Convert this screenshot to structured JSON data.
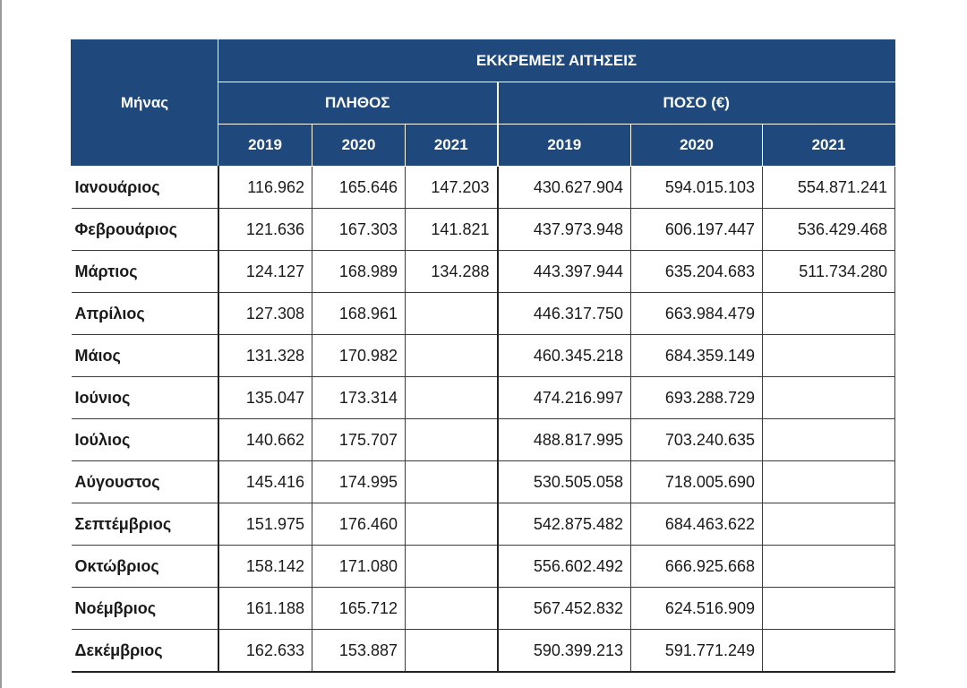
{
  "table": {
    "title": "ΕΚΚΡΕΜΕΙΣ ΑΙΤΗΣΕΙΣ",
    "month_header": "Μήνας",
    "count_header": "ΠΛΗΘΟΣ",
    "amount_header": "ΠΟΣΟ (€)",
    "years": [
      "2019",
      "2020",
      "2021"
    ],
    "rows": [
      {
        "month": "Ιανουάριος",
        "count": [
          "116.962",
          "165.646",
          "147.203"
        ],
        "amount": [
          "430.627.904",
          "594.015.103",
          "554.871.241"
        ]
      },
      {
        "month": "Φεβρουάριος",
        "count": [
          "121.636",
          "167.303",
          "141.821"
        ],
        "amount": [
          "437.973.948",
          "606.197.447",
          "536.429.468"
        ]
      },
      {
        "month": "Μάρτιος",
        "count": [
          "124.127",
          "168.989",
          "134.288"
        ],
        "amount": [
          "443.397.944",
          "635.204.683",
          "511.734.280"
        ]
      },
      {
        "month": "Απρίλιος",
        "count": [
          "127.308",
          "168.961",
          ""
        ],
        "amount": [
          "446.317.750",
          "663.984.479",
          ""
        ]
      },
      {
        "month": "Μάιος",
        "count": [
          "131.328",
          "170.982",
          ""
        ],
        "amount": [
          "460.345.218",
          "684.359.149",
          ""
        ]
      },
      {
        "month": "Ιούνιος",
        "count": [
          "135.047",
          "173.314",
          ""
        ],
        "amount": [
          "474.216.997",
          "693.288.729",
          ""
        ]
      },
      {
        "month": "Ιούλιος",
        "count": [
          "140.662",
          "175.707",
          ""
        ],
        "amount": [
          "488.817.995",
          "703.240.635",
          ""
        ]
      },
      {
        "month": "Αύγουστος",
        "count": [
          "145.416",
          "174.995",
          ""
        ],
        "amount": [
          "530.505.058",
          "718.005.690",
          ""
        ]
      },
      {
        "month": "Σεπτέμβριος",
        "count": [
          "151.975",
          "176.460",
          ""
        ],
        "amount": [
          "542.875.482",
          "684.463.622",
          ""
        ]
      },
      {
        "month": "Οκτώβριος",
        "count": [
          "158.142",
          "171.080",
          ""
        ],
        "amount": [
          "556.602.492",
          "666.925.668",
          ""
        ]
      },
      {
        "month": "Νοέμβριος",
        "count": [
          "161.188",
          "165.712",
          ""
        ],
        "amount": [
          "567.452.832",
          "624.516.909",
          ""
        ]
      },
      {
        "month": "Δεκέμβριος",
        "count": [
          "162.633",
          "153.887",
          ""
        ],
        "amount": [
          "590.399.213",
          "591.771.249",
          ""
        ]
      }
    ]
  },
  "colors": {
    "header_bg": "#1f497d",
    "header_text": "#ffffff",
    "grid": "#3a3a3a"
  }
}
